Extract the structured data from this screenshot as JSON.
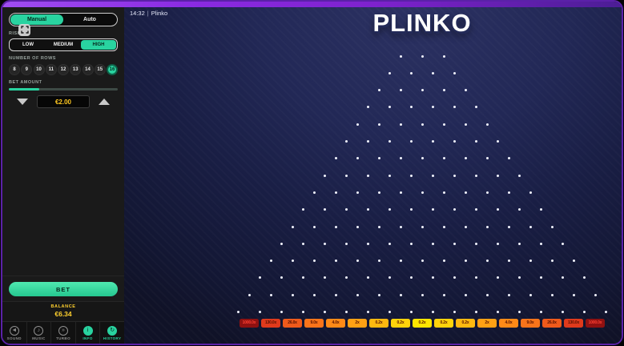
{
  "header": {
    "clock": "14:32",
    "divider": "|",
    "game_name": "Plinko",
    "logo_text": "PLINKO"
  },
  "sidebar": {
    "mode_toggle": {
      "options": [
        {
          "label": "Manual",
          "active": true
        },
        {
          "label": "Auto",
          "active": false
        }
      ]
    },
    "risk": {
      "label": "RISK",
      "options": [
        {
          "label": "LOW",
          "active": false
        },
        {
          "label": "MEDIUM",
          "active": false
        },
        {
          "label": "HIGH",
          "active": true
        }
      ]
    },
    "rows": {
      "label": "NUMBER OF ROWS",
      "options": [
        "8",
        "9",
        "10",
        "11",
        "12",
        "13",
        "14",
        "15",
        "16"
      ],
      "selected": "16"
    },
    "bet_amount": {
      "label": "BET AMOUNT",
      "value": "€2.00",
      "slider_fill_pct": 28
    },
    "bet_button_label": "BET",
    "balance": {
      "label": "BALANCE",
      "value": "€6.34"
    },
    "footer_nav": [
      {
        "label": "SOUND",
        "icon": "speaker-icon",
        "glyph": "◄",
        "active": false
      },
      {
        "label": "MUSIC",
        "icon": "music-note-icon",
        "glyph": "♪",
        "active": false
      },
      {
        "label": "TURBO",
        "icon": "lightning-icon",
        "glyph": "»",
        "active": false
      },
      {
        "label": "INFO",
        "icon": "info-icon",
        "glyph": "i",
        "active": true
      },
      {
        "label": "HISTORY",
        "icon": "history-icon",
        "glyph": "↻",
        "active": true
      }
    ]
  },
  "board": {
    "rows": 16,
    "peg_color": "#f2f4ff",
    "bins": [
      {
        "label": "1000.0x",
        "bg": "#8f1111",
        "fg": "#ff4133"
      },
      {
        "label": "130.0x",
        "bg": "#e03a1c",
        "fg": "#541000"
      },
      {
        "label": "26.0x",
        "bg": "#ef5a1b",
        "fg": "#541000"
      },
      {
        "label": "9.0x",
        "bg": "#fa741a",
        "fg": "#541000"
      },
      {
        "label": "4.0x",
        "bg": "#ff8a17",
        "fg": "#541000"
      },
      {
        "label": "2x",
        "bg": "#ffa114",
        "fg": "#541000"
      },
      {
        "label": "0.2x",
        "bg": "#ffb910",
        "fg": "#541000"
      },
      {
        "label": "0.2x",
        "bg": "#ffd30b",
        "fg": "#541000"
      },
      {
        "label": "0.2x",
        "bg": "#ffe600",
        "fg": "#541000"
      },
      {
        "label": "0.2x",
        "bg": "#ffd30b",
        "fg": "#541000"
      },
      {
        "label": "0.2x",
        "bg": "#ffb910",
        "fg": "#541000"
      },
      {
        "label": "2x",
        "bg": "#ffa114",
        "fg": "#541000"
      },
      {
        "label": "4.0x",
        "bg": "#ff8a17",
        "fg": "#541000"
      },
      {
        "label": "9.0x",
        "bg": "#fa741a",
        "fg": "#541000"
      },
      {
        "label": "26.0x",
        "bg": "#ef5a1b",
        "fg": "#541000"
      },
      {
        "label": "130.0x",
        "bg": "#e03a1c",
        "fg": "#541000"
      },
      {
        "label": "1000.0x",
        "bg": "#8f1111",
        "fg": "#ff4133"
      }
    ]
  },
  "colors": {
    "accent": "#29d3a0",
    "accent_text": "#06281d",
    "bet_text_yellow": "#ffc821",
    "balance_yellow": "#ffd02e",
    "frame_purple": "#7e22ce"
  }
}
